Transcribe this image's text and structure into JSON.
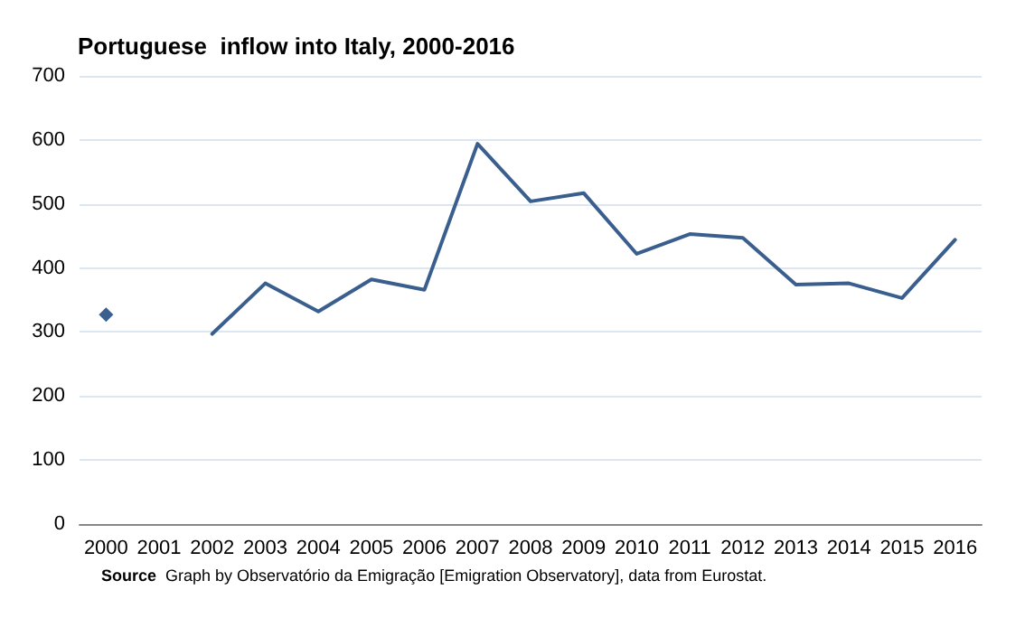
{
  "chart_data": {
    "type": "line",
    "title": "Portuguese  inflow into Italy, 2000-2016",
    "categories": [
      "2000",
      "2001",
      "2002",
      "2003",
      "2004",
      "2005",
      "2006",
      "2007",
      "2008",
      "2009",
      "2010",
      "2011",
      "2012",
      "2013",
      "2014",
      "2015",
      "2016"
    ],
    "series": [
      {
        "color": "#3a5f8f",
        "values": [
          327,
          null,
          297,
          376,
          332,
          382,
          366,
          594,
          504,
          517,
          422,
          453,
          447,
          374,
          376,
          353,
          444
        ]
      }
    ],
    "ylim": [
      0,
      700
    ],
    "yticks": [
      0,
      100,
      200,
      300,
      400,
      500,
      600,
      700
    ],
    "grid": "y",
    "annotations": [
      "Source  Graph by Observatório da Emigração [Emigration Observatory], data from Eurostat."
    ]
  }
}
